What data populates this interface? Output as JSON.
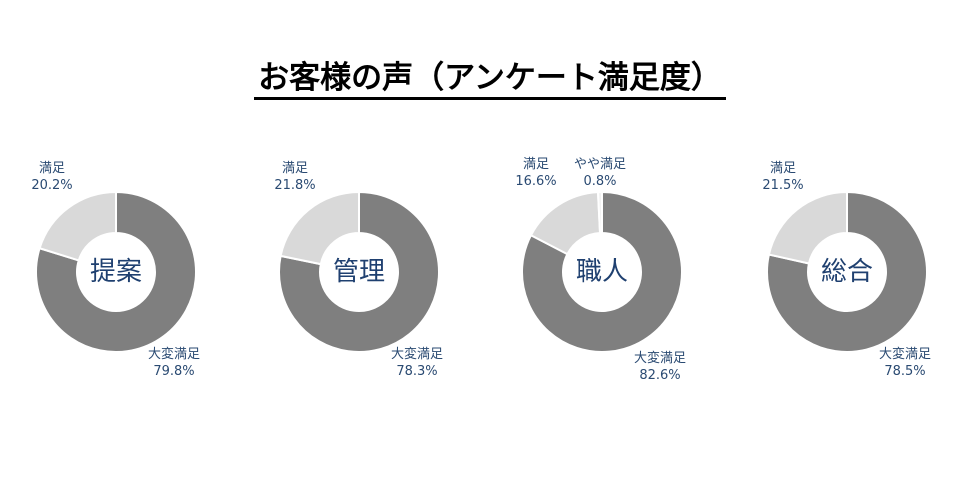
{
  "title": "お客様の声（アンケート満足度）",
  "chart_data": [
    {
      "type": "pie",
      "donut": true,
      "center_label": "提案",
      "slices": [
        {
          "label": "大変満足",
          "value": 79.8,
          "display": "79.8%",
          "color": "#7f7f7f"
        },
        {
          "label": "満足",
          "value": 20.2,
          "display": "20.2%",
          "color": "#d9d9d9"
        }
      ]
    },
    {
      "type": "pie",
      "donut": true,
      "center_label": "管理",
      "slices": [
        {
          "label": "大変満足",
          "value": 78.3,
          "display": "78.3%",
          "color": "#7f7f7f"
        },
        {
          "label": "満足",
          "value": 21.8,
          "display": "21.8%",
          "color": "#d9d9d9"
        }
      ]
    },
    {
      "type": "pie",
      "donut": true,
      "center_label": "職人",
      "slices": [
        {
          "label": "大変満足",
          "value": 82.6,
          "display": "82.6%",
          "color": "#7f7f7f"
        },
        {
          "label": "満足",
          "value": 16.6,
          "display": "16.6%",
          "color": "#d9d9d9"
        },
        {
          "label": "やや満足",
          "value": 0.8,
          "display": "0.8%",
          "color": "#f2f2f2"
        }
      ]
    },
    {
      "type": "pie",
      "donut": true,
      "center_label": "総合",
      "slices": [
        {
          "label": "大変満足",
          "value": 78.5,
          "display": "78.5%",
          "color": "#7f7f7f"
        },
        {
          "label": "満足",
          "value": 21.5,
          "display": "21.5%",
          "color": "#d9d9d9"
        }
      ]
    }
  ]
}
